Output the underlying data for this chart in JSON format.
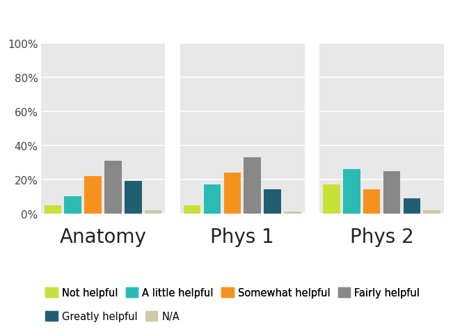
{
  "courses": [
    "Anatomy",
    "Phys 1",
    "Phys 2"
  ],
  "categories": [
    "Not helpful",
    "A little helpful",
    "Somewhat helpful",
    "Fairly helpful",
    "Greatly helpful",
    "N/A"
  ],
  "colors": [
    "#c8e03a",
    "#2abcb4",
    "#f5921e",
    "#888888",
    "#215f70",
    "#cdc9aa"
  ],
  "values": {
    "Anatomy": [
      0.05,
      0.1,
      0.22,
      0.31,
      0.19,
      0.02
    ],
    "Phys 1": [
      0.05,
      0.17,
      0.24,
      0.33,
      0.14,
      0.01
    ],
    "Phys 2": [
      0.17,
      0.26,
      0.14,
      0.25,
      0.09,
      0.02
    ]
  },
  "ylim": [
    0,
    1.0
  ],
  "yticks": [
    0.0,
    0.2,
    0.4,
    0.6,
    0.8,
    1.0
  ],
  "yticklabels": [
    "0%",
    "20%",
    "40%",
    "60%",
    "80%",
    "100%"
  ],
  "background_color": "#e8e8e8",
  "fig_background": "#ffffff",
  "bar_width": 0.85,
  "course_label_fontsize": 20,
  "legend_fontsize": 10.5,
  "tick_fontsize": 11,
  "legend_ncol_row1": 4,
  "legend_ncol_row2": 2
}
